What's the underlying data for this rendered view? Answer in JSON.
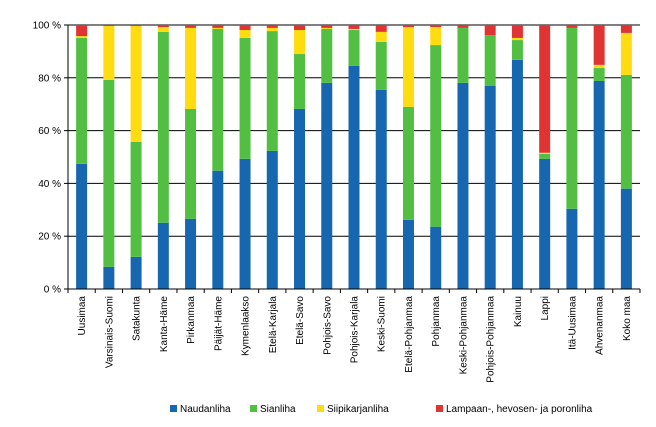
{
  "chart_data": {
    "type": "bar",
    "stacked": true,
    "title": "",
    "xlabel": "",
    "ylabel": "",
    "ylim": [
      0,
      100
    ],
    "yticks": [
      "0 %",
      "20 %",
      "40 %",
      "60 %",
      "80 %",
      "100 %"
    ],
    "grid": true,
    "legend_position": "bottom",
    "categories": [
      "Uusimaa",
      "Varsinais-Suomi",
      "Satakunta",
      "Kanta-Häme",
      "Pirkanmaa",
      "Päijät-Häme",
      "Kymenlaakso",
      "Etelä-Karjala",
      "Etelä-Savo",
      "Pohjois-Savo",
      "Pohjois-Karjala",
      "Keski-Suomi",
      "Etelä-Pohjanmaa",
      "Pohjanmaa",
      "Keski-Pohjanmaa",
      "Pohjois-Pohjanmaa",
      "Kainuu",
      "Lappi",
      "Itä-Uusimaa",
      "Ahvenanmaa",
      "Koko maa"
    ],
    "series": [
      {
        "name": "Naudanliha",
        "color": "#1767b0",
        "values": [
          47.4,
          8.4,
          12.2,
          25.1,
          26.6,
          44.8,
          49.3,
          52.3,
          68.2,
          78.1,
          84.5,
          75.4,
          26.2,
          23.6,
          78.1,
          76.9,
          86.8,
          49.3,
          30.4,
          78.8,
          38.0
        ]
      },
      {
        "name": "Sianliha",
        "color": "#52bf43",
        "values": [
          47.7,
          70.8,
          43.5,
          72.3,
          41.6,
          53.7,
          45.8,
          45.4,
          20.8,
          20.4,
          13.6,
          18.2,
          42.8,
          68.8,
          20.8,
          19.3,
          7.5,
          1.9,
          68.5,
          4.9,
          43.1
        ]
      },
      {
        "name": "Siipikarjanliha",
        "color": "#ffdc0f",
        "values": [
          0.7,
          20.4,
          43.9,
          1.8,
          30.7,
          0.4,
          3.0,
          1.2,
          9.1,
          0.4,
          0.4,
          3.8,
          30.2,
          6.8,
          0.0,
          0.0,
          0.8,
          0.4,
          0.0,
          1.2,
          15.9
        ]
      },
      {
        "name": "Lampaan-, hevosen- ja poronliha",
        "color": "#e03434",
        "values": [
          4.2,
          0.4,
          0.4,
          0.8,
          1.1,
          1.1,
          1.9,
          1.1,
          1.9,
          1.1,
          1.5,
          2.6,
          0.8,
          0.8,
          1.1,
          3.8,
          4.9,
          48.4,
          1.1,
          15.1,
          3.0
        ]
      }
    ]
  }
}
